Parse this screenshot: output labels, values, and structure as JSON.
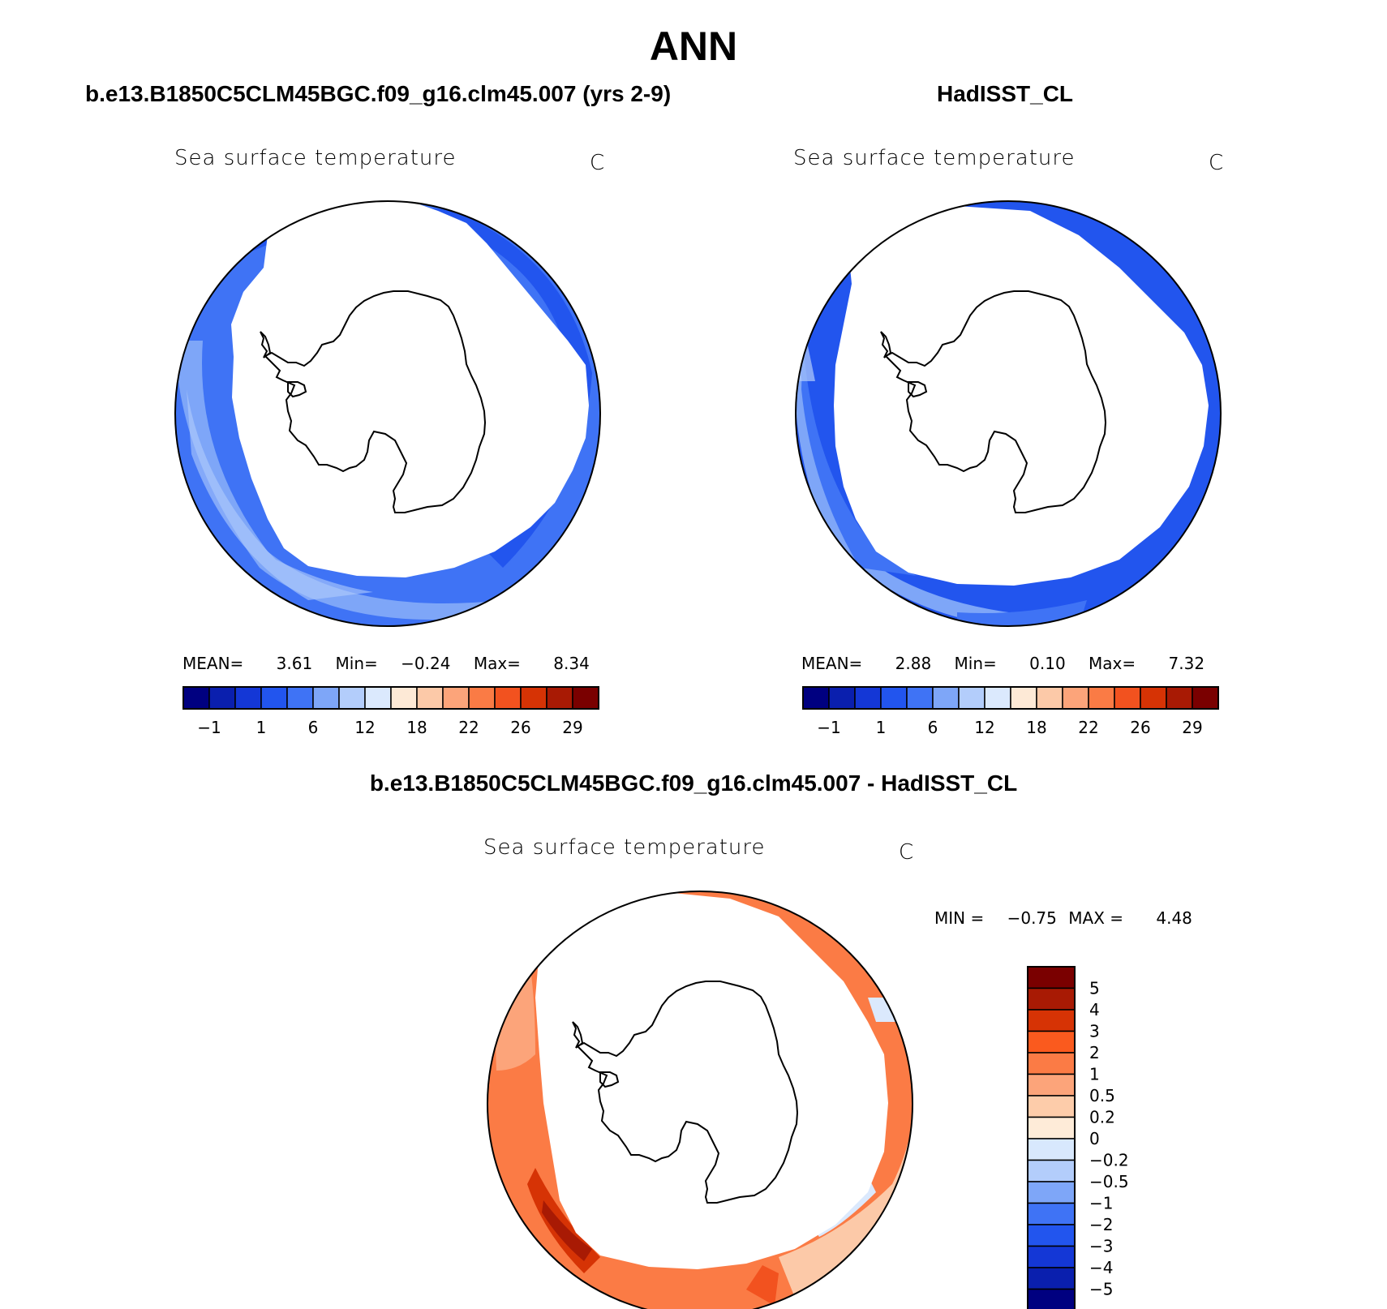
{
  "page_title": "ANN",
  "panels": [
    {
      "id": "model",
      "header": "b.e13.B1850C5CLM45BGC.f09_g16.clm45.007 (yrs 2-9)",
      "variable": "Sea surface temperature",
      "units": "C",
      "stats": {
        "mean_label": "MEAN=",
        "mean": "3.61",
        "min_label": "Min=",
        "min": "−0.24",
        "max_label": "Max=",
        "max": "8.34"
      }
    },
    {
      "id": "obs",
      "header": "HadISST_CL",
      "variable": "Sea surface temperature",
      "units": "C",
      "stats": {
        "mean_label": "MEAN=",
        "mean": "2.88",
        "min_label": "Min=",
        "min": "0.10",
        "max_label": "Max=",
        "max": "7.32"
      }
    }
  ],
  "horizontal_colorbar": {
    "colors": [
      "#000080",
      "#0a1fae",
      "#1437d6",
      "#2255ee",
      "#3f73f5",
      "#7ea6f8",
      "#b3cdfb",
      "#dbe9fd",
      "#fde9d6",
      "#fcc9a8",
      "#fca47a",
      "#fa7b45",
      "#f2521f",
      "#d63305",
      "#a81a04",
      "#7a0000"
    ],
    "tick_labels": [
      "−1",
      "1",
      "6",
      "12",
      "18",
      "22",
      "26",
      "29"
    ]
  },
  "difference_panel": {
    "header": "b.e13.B1850C5CLM45BGC.f09_g16.clm45.007 - HadISST_CL",
    "variable": "Sea surface temperature",
    "units": "C",
    "min_label": "MIN =",
    "min": "−0.75",
    "max_label": "MAX =",
    "max": "4.48",
    "colorbar": {
      "colors": [
        "#7a0000",
        "#a81a04",
        "#d63305",
        "#fa5a1e",
        "#fb7b45",
        "#fca47a",
        "#fdccaa",
        "#feebd8",
        "#d8e8fd",
        "#b3cdfb",
        "#7ea6f8",
        "#3f73f5",
        "#2255ee",
        "#1437d6",
        "#0a1fae",
        "#000080"
      ],
      "labels": [
        "5",
        "4",
        "3",
        "2",
        "1",
        "0.5",
        "0.2",
        "0",
        "−0.2",
        "−0.5",
        "−1",
        "−2",
        "−3",
        "−4",
        "−5"
      ]
    }
  },
  "colors": {
    "ocean_model": "#3f73f5",
    "ocean_obs": "#2255ee",
    "ocean_diff": "#fb7b45"
  }
}
